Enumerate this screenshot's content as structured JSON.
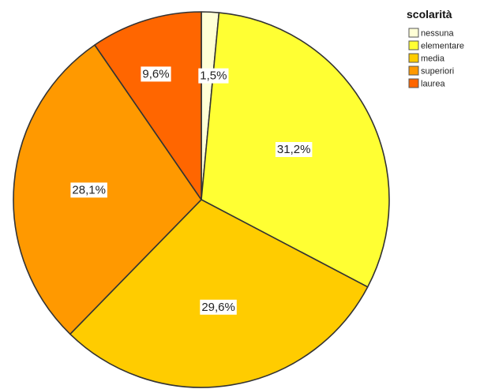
{
  "chart_data": {
    "type": "pie",
    "legend_title": "scolarità",
    "legend_position": "top-right",
    "start_direction": "clockwise from 12 o'clock",
    "categories": [
      "nessuna",
      "elementare",
      "media",
      "superiori",
      "laurea"
    ],
    "values": [
      1.5,
      31.2,
      29.6,
      28.1,
      9.6
    ],
    "data_labels": [
      "1,5%",
      "31,2%",
      "29,6%",
      "28,1%",
      "9,6%"
    ],
    "colors": [
      "#ffffd6",
      "#ffff33",
      "#ffcc00",
      "#ff9900",
      "#ff6600"
    ]
  }
}
